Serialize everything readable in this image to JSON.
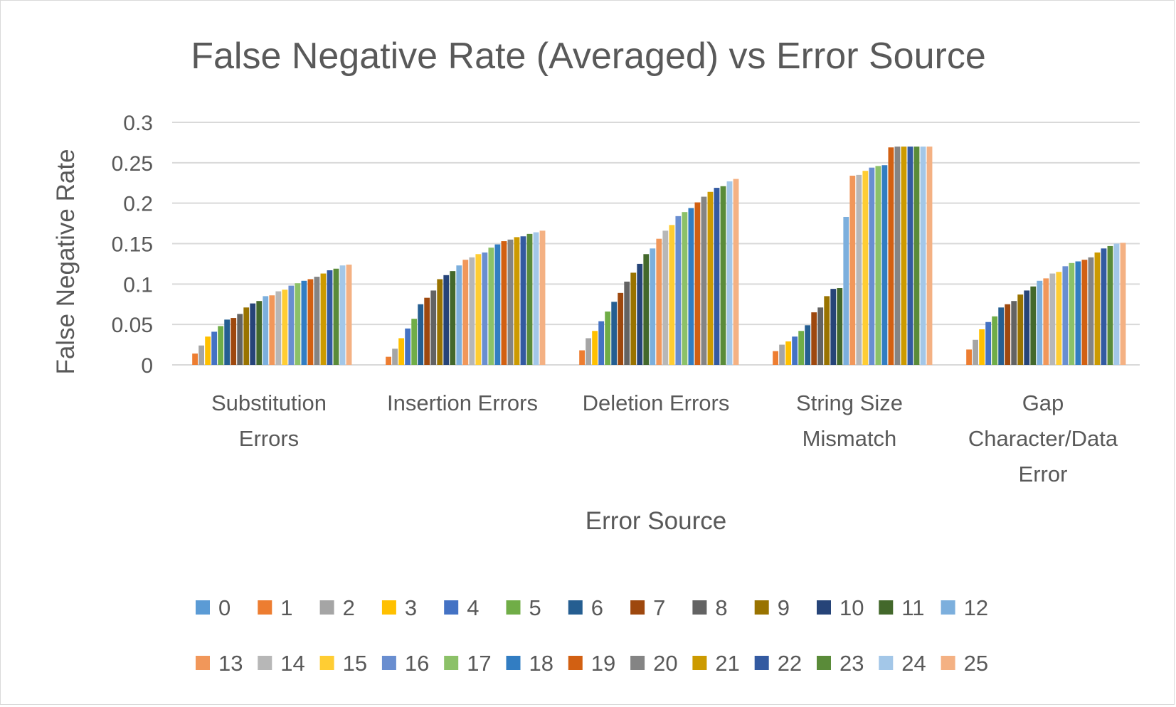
{
  "chart_data": {
    "type": "bar",
    "title": "False Negative Rate (Averaged) vs Error Source",
    "xlabel": "Error Source",
    "ylabel": "False Negative Rate",
    "ylim": [
      0,
      0.3
    ],
    "yticks": [
      "0",
      "0.05",
      "0.1",
      "0.15",
      "0.2",
      "0.25",
      "0.3"
    ],
    "grid": true,
    "legend_position": "bottom",
    "categories": [
      [
        "Substitution",
        "Errors"
      ],
      [
        "Insertion Errors"
      ],
      [
        "Deletion Errors"
      ],
      [
        "String Size",
        "Mismatch"
      ],
      [
        "Gap",
        "Character/Data",
        "Error"
      ]
    ],
    "series": [
      {
        "name": "0",
        "color": "#5b9bd5",
        "values": [
          0,
          0,
          0,
          0,
          0
        ]
      },
      {
        "name": "1",
        "color": "#ed7d31",
        "values": [
          0.014,
          0.01,
          0.018,
          0.017,
          0.019
        ]
      },
      {
        "name": "2",
        "color": "#a5a5a5",
        "values": [
          0.024,
          0.02,
          0.033,
          0.025,
          0.031
        ]
      },
      {
        "name": "3",
        "color": "#ffc000",
        "values": [
          0.035,
          0.033,
          0.042,
          0.029,
          0.044
        ]
      },
      {
        "name": "4",
        "color": "#4472c4",
        "values": [
          0.041,
          0.045,
          0.054,
          0.035,
          0.053
        ]
      },
      {
        "name": "5",
        "color": "#70ad47",
        "values": [
          0.048,
          0.057,
          0.066,
          0.042,
          0.06
        ]
      },
      {
        "name": "6",
        "color": "#255e91",
        "values": [
          0.056,
          0.075,
          0.078,
          0.049,
          0.071
        ]
      },
      {
        "name": "7",
        "color": "#9e480e",
        "values": [
          0.058,
          0.083,
          0.089,
          0.065,
          0.075
        ]
      },
      {
        "name": "8",
        "color": "#636363",
        "values": [
          0.063,
          0.092,
          0.103,
          0.071,
          0.079
        ]
      },
      {
        "name": "9",
        "color": "#997300",
        "values": [
          0.071,
          0.106,
          0.114,
          0.085,
          0.087
        ]
      },
      {
        "name": "10",
        "color": "#264478",
        "values": [
          0.076,
          0.111,
          0.125,
          0.094,
          0.092
        ]
      },
      {
        "name": "11",
        "color": "#43682b",
        "values": [
          0.079,
          0.116,
          0.137,
          0.095,
          0.097
        ]
      },
      {
        "name": "12",
        "color": "#7cafdd",
        "values": [
          0.085,
          0.123,
          0.144,
          0.183,
          0.104
        ]
      },
      {
        "name": "13",
        "color": "#f1975a",
        "values": [
          0.086,
          0.13,
          0.156,
          0.234,
          0.107
        ]
      },
      {
        "name": "14",
        "color": "#b7b7b7",
        "values": [
          0.091,
          0.133,
          0.166,
          0.235,
          0.113
        ]
      },
      {
        "name": "15",
        "color": "#ffcd33",
        "values": [
          0.093,
          0.137,
          0.173,
          0.24,
          0.115
        ]
      },
      {
        "name": "16",
        "color": "#698ed0",
        "values": [
          0.098,
          0.139,
          0.184,
          0.244,
          0.122
        ]
      },
      {
        "name": "17",
        "color": "#8cc168",
        "values": [
          0.101,
          0.145,
          0.189,
          0.246,
          0.126
        ]
      },
      {
        "name": "18",
        "color": "#327dc2",
        "values": [
          0.104,
          0.149,
          0.194,
          0.247,
          0.128
        ]
      },
      {
        "name": "19",
        "color": "#d26012",
        "values": [
          0.106,
          0.153,
          0.201,
          0.269,
          0.13
        ]
      },
      {
        "name": "20",
        "color": "#848484",
        "values": [
          0.109,
          0.155,
          0.208,
          0.27,
          0.133
        ]
      },
      {
        "name": "21",
        "color": "#cc9a00",
        "values": [
          0.113,
          0.158,
          0.214,
          0.27,
          0.139
        ]
      },
      {
        "name": "22",
        "color": "#335aa1",
        "values": [
          0.117,
          0.159,
          0.219,
          0.27,
          0.144
        ]
      },
      {
        "name": "23",
        "color": "#5a8b39",
        "values": [
          0.119,
          0.162,
          0.221,
          0.27,
          0.147
        ]
      },
      {
        "name": "24",
        "color": "#a3c7e8",
        "values": [
          0.123,
          0.164,
          0.227,
          0.27,
          0.15
        ]
      },
      {
        "name": "25",
        "color": "#f4b183",
        "values": [
          0.124,
          0.166,
          0.23,
          0.27,
          0.151
        ]
      }
    ]
  }
}
